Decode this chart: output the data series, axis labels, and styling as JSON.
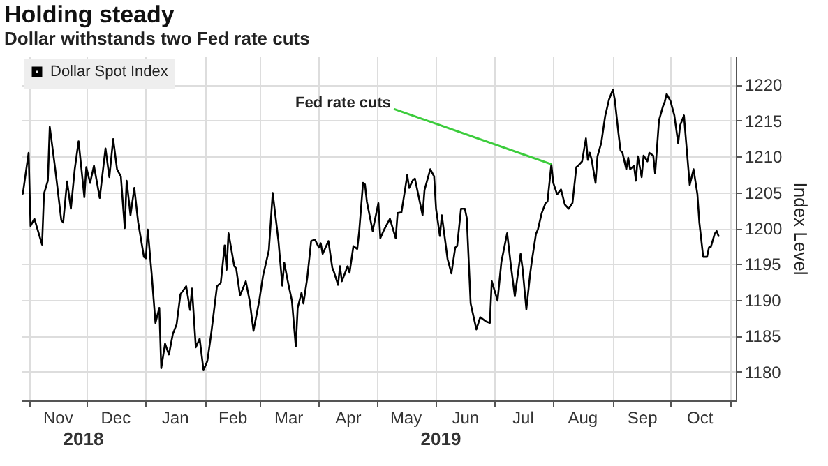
{
  "chart_data": {
    "type": "line",
    "title": "Holding steady",
    "subtitle": "Dollar withstands two Fed rate cuts",
    "ylabel": "Index Level",
    "legend": "top left",
    "grid": true,
    "line_style": "solid",
    "xlim": [
      "2018-10-28",
      "2019-11-04"
    ],
    "ylim": [
      1176,
      1224
    ],
    "yticks": [
      1180,
      1185,
      1190,
      1195,
      1200,
      1205,
      1210,
      1215,
      1220
    ],
    "xticks": [
      {
        "value": "2018-11-01",
        "label": null
      },
      {
        "value": "2018-11-16",
        "label": "Nov"
      },
      {
        "value": "2018-12-01",
        "label": null
      },
      {
        "value": "2018-12-16",
        "label": "Dec"
      },
      {
        "value": "2019-01-01",
        "label": null
      },
      {
        "value": "2019-01-16",
        "label": "Jan"
      },
      {
        "value": "2019-02-01",
        "label": null
      },
      {
        "value": "2019-02-15",
        "label": "Feb"
      },
      {
        "value": "2019-03-01",
        "label": null
      },
      {
        "value": "2019-03-16",
        "label": "Mar"
      },
      {
        "value": "2019-04-01",
        "label": null
      },
      {
        "value": "2019-04-16",
        "label": "Apr"
      },
      {
        "value": "2019-05-01",
        "label": null
      },
      {
        "value": "2019-05-16",
        "label": "May"
      },
      {
        "value": "2019-06-01",
        "label": null
      },
      {
        "value": "2019-06-16",
        "label": "Jun"
      },
      {
        "value": "2019-07-01",
        "label": null
      },
      {
        "value": "2019-07-16",
        "label": "Jul"
      },
      {
        "value": "2019-08-01",
        "label": null
      },
      {
        "value": "2019-08-16",
        "label": "Aug"
      },
      {
        "value": "2019-09-01",
        "label": null
      },
      {
        "value": "2019-09-16",
        "label": "Sep"
      },
      {
        "value": "2019-10-01",
        "label": null
      },
      {
        "value": "2019-10-16",
        "label": "Oct"
      },
      {
        "value": "2019-11-01",
        "label": null
      }
    ],
    "annotations": [
      "2018",
      "2019",
      {
        "text": "Fed rate cuts",
        "x": "2019-07-31",
        "y": 1208.9
      }
    ],
    "x": [
      "2018-10-29",
      "2018-11-01",
      "2018-11-02",
      "2018-11-04",
      "2018-11-08",
      "2018-11-09",
      "2018-11-11",
      "2018-11-12",
      "2018-11-15",
      "2018-11-18",
      "2018-11-19",
      "2018-11-21",
      "2018-11-23",
      "2018-11-25",
      "2018-11-27",
      "2018-11-30",
      "2018-12-01",
      "2018-12-03",
      "2018-12-05",
      "2018-12-08",
      "2018-12-11",
      "2018-12-13",
      "2018-12-15",
      "2018-12-17",
      "2018-12-19",
      "2018-12-21",
      "2018-12-22",
      "2018-12-24",
      "2018-12-26",
      "2018-12-28",
      "2018-12-31",
      "2019-01-01",
      "2019-01-02",
      "2019-01-04",
      "2019-01-06",
      "2019-01-08",
      "2019-01-09",
      "2019-01-11",
      "2019-01-13",
      "2019-01-15",
      "2019-01-17",
      "2019-01-19",
      "2019-01-22",
      "2019-01-24",
      "2019-01-25",
      "2019-01-27",
      "2019-01-29",
      "2019-01-31",
      "2019-02-02",
      "2019-02-04",
      "2019-02-07",
      "2019-02-09",
      "2019-02-11",
      "2019-02-12",
      "2019-02-13",
      "2019-02-16",
      "2019-02-17",
      "2019-02-19",
      "2019-02-22",
      "2019-02-24",
      "2019-02-26",
      "2019-03-01",
      "2019-03-03",
      "2019-03-06",
      "2019-03-08",
      "2019-03-11",
      "2019-03-13",
      "2019-03-14",
      "2019-03-16",
      "2019-03-18",
      "2019-03-20",
      "2019-03-21",
      "2019-03-23",
      "2019-03-24",
      "2019-03-26",
      "2019-03-28",
      "2019-03-30",
      "2019-04-01",
      "2019-04-02",
      "2019-04-03",
      "2019-04-06",
      "2019-04-08",
      "2019-04-09",
      "2019-04-11",
      "2019-04-12",
      "2019-04-13",
      "2019-04-16",
      "2019-04-17",
      "2019-04-19",
      "2019-04-21",
      "2019-04-22",
      "2019-04-24",
      "2019-04-25",
      "2019-04-26",
      "2019-04-29",
      "2019-05-02",
      "2019-05-03",
      "2019-05-05",
      "2019-05-08",
      "2019-05-11",
      "2019-05-12",
      "2019-05-14",
      "2019-05-16",
      "2019-05-17",
      "2019-05-18",
      "2019-05-20",
      "2019-05-21",
      "2019-05-25",
      "2019-05-26",
      "2019-05-29",
      "2019-05-31",
      "2019-06-01",
      "2019-06-03",
      "2019-06-04",
      "2019-06-07",
      "2019-06-09",
      "2019-06-11",
      "2019-06-12",
      "2019-06-14",
      "2019-06-16",
      "2019-06-17",
      "2019-06-19",
      "2019-06-22",
      "2019-06-24",
      "2019-06-27",
      "2019-06-29",
      "2019-06-30",
      "2019-07-02",
      "2019-07-03",
      "2019-07-05",
      "2019-07-08",
      "2019-07-10",
      "2019-07-12",
      "2019-07-15",
      "2019-07-16",
      "2019-07-18",
      "2019-07-20",
      "2019-07-21",
      "2019-07-23",
      "2019-07-24",
      "2019-07-26",
      "2019-07-28",
      "2019-07-29",
      "2019-07-31",
      "2019-08-01",
      "2019-08-03",
      "2019-08-05",
      "2019-08-07",
      "2019-08-09",
      "2019-08-11",
      "2019-08-13",
      "2019-08-14",
      "2019-08-16",
      "2019-08-18",
      "2019-08-19",
      "2019-08-20",
      "2019-08-21",
      "2019-08-23",
      "2019-08-24",
      "2019-08-26",
      "2019-08-28",
      "2019-08-30",
      "2019-09-01",
      "2019-09-02",
      "2019-09-04",
      "2019-09-05",
      "2019-09-06",
      "2019-09-08",
      "2019-09-09",
      "2019-09-10",
      "2019-09-12",
      "2019-09-13",
      "2019-09-14",
      "2019-09-16",
      "2019-09-17",
      "2019-09-19",
      "2019-09-20",
      "2019-09-22",
      "2019-09-23",
      "2019-09-25",
      "2019-09-27",
      "2019-09-28",
      "2019-09-29",
      "2019-10-01",
      "2019-10-03",
      "2019-10-05",
      "2019-10-06",
      "2019-10-08",
      "2019-10-09",
      "2019-10-11",
      "2019-10-13",
      "2019-10-15",
      "2019-10-16",
      "2019-10-18",
      "2019-10-20",
      "2019-10-21",
      "2019-10-22",
      "2019-10-24",
      "2019-10-25",
      "2019-10-26"
    ],
    "series": [
      {
        "name": "Dollar Spot Index",
        "color": "#000000",
        "values": [
          1204.8,
          1210.5,
          1200.3,
          1201.3,
          1197.7,
          1204.8,
          1206.6,
          1214.1,
          1207.9,
          1201.1,
          1200.8,
          1206.5,
          1202.7,
          1208.2,
          1212.1,
          1204.3,
          1208.5,
          1206.3,
          1208.7,
          1204.2,
          1211.1,
          1207.1,
          1212.4,
          1208.2,
          1207.2,
          1200,
          1206.6,
          1201.8,
          1205.6,
          1200.8,
          1196,
          1195.8,
          1199.8,
          1193.7,
          1186.8,
          1188.9,
          1180.5,
          1183.9,
          1182.4,
          1185.2,
          1186.6,
          1190.8,
          1191.9,
          1188.6,
          1191.6,
          1183.4,
          1184.6,
          1180.2,
          1181.5,
          1185.3,
          1191.9,
          1192.4,
          1197.6,
          1194.2,
          1199.3,
          1194.7,
          1194.4,
          1190.6,
          1192.6,
          1189.9,
          1185.7,
          1189.9,
          1193.4,
          1196.9,
          1204.9,
          1198.2,
          1192,
          1195.2,
          1192.4,
          1189.9,
          1183.5,
          1188.9,
          1191,
          1189.5,
          1193.1,
          1198.2,
          1198.4,
          1197.3,
          1197.9,
          1196.4,
          1198.2,
          1194.5,
          1193.8,
          1192.1,
          1194.7,
          1192.6,
          1194.7,
          1193.8,
          1197.5,
          1197.1,
          1199.5,
          1206.3,
          1206.1,
          1203.7,
          1199.6,
          1203.5,
          1198.6,
          1199.8,
          1201.3,
          1198.6,
          1202.1,
          1202.2,
          1205.6,
          1207.4,
          1205.6,
          1206.7,
          1206.9,
          1201.8,
          1205.3,
          1208.2,
          1207.2,
          1202.7,
          1198.9,
          1201.8,
          1195.7,
          1193.7,
          1197.3,
          1197.5,
          1202.7,
          1202.7,
          1201.4,
          1189.5,
          1185.9,
          1187.6,
          1187,
          1186.8,
          1192.6,
          1190.8,
          1189.9,
          1195.3,
          1199.3,
          1194.7,
          1190.5,
          1196.4,
          1194.4,
          1188.7,
          1193.7,
          1195.7,
          1199.2,
          1199.8,
          1202.1,
          1203.5,
          1203.7,
          1208.9,
          1206.3,
          1204.7,
          1205.4,
          1203.3,
          1202.7,
          1203.5,
          1208.5,
          1208.7,
          1209.3,
          1212.5,
          1209.5,
          1210.5,
          1209.5,
          1206.3,
          1210,
          1211.9,
          1215.6,
          1217.9,
          1219.3,
          1217.9,
          1213,
          1210.8,
          1210.5,
          1208.2,
          1209.8,
          1208.2,
          1208.7,
          1206.6,
          1210,
          1207.1,
          1210.1,
          1209.3,
          1210.5,
          1210.1,
          1207.6,
          1215,
          1216.9,
          1217.6,
          1218.7,
          1217.7,
          1215.7,
          1211.8,
          1214.3,
          1215.7,
          1212.4,
          1206,
          1208.2,
          1204.7,
          1200.8,
          1196,
          1196,
          1197.3,
          1197.4,
          1199.2,
          1199.6,
          1198.9
        ]
      }
    ]
  }
}
